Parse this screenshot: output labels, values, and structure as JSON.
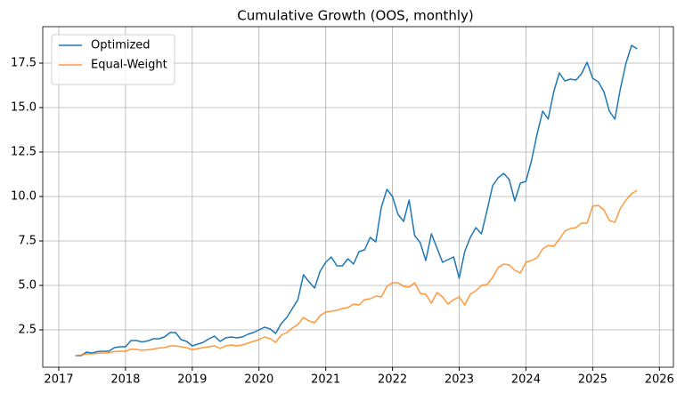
{
  "chart_data": {
    "type": "line",
    "title": "Cumulative Growth (OOS, monthly)",
    "x": [
      2017.25,
      2017.333,
      2017.417,
      2017.5,
      2017.583,
      2017.667,
      2017.75,
      2017.833,
      2017.917,
      2018.0,
      2018.083,
      2018.167,
      2018.25,
      2018.333,
      2018.417,
      2018.5,
      2018.583,
      2018.667,
      2018.75,
      2018.833,
      2018.917,
      2019.0,
      2019.083,
      2019.167,
      2019.25,
      2019.333,
      2019.417,
      2019.5,
      2019.583,
      2019.667,
      2019.75,
      2019.833,
      2019.917,
      2020.0,
      2020.083,
      2020.167,
      2020.25,
      2020.333,
      2020.417,
      2020.5,
      2020.583,
      2020.667,
      2020.75,
      2020.833,
      2020.917,
      2021.0,
      2021.083,
      2021.167,
      2021.25,
      2021.333,
      2021.417,
      2021.5,
      2021.583,
      2021.667,
      2021.75,
      2021.833,
      2021.917,
      2022.0,
      2022.083,
      2022.167,
      2022.25,
      2022.333,
      2022.417,
      2022.5,
      2022.583,
      2022.667,
      2022.75,
      2022.833,
      2022.917,
      2023.0,
      2023.083,
      2023.167,
      2023.25,
      2023.333,
      2023.417,
      2023.5,
      2023.583,
      2023.667,
      2023.75,
      2023.833,
      2023.917,
      2024.0,
      2024.083,
      2024.167,
      2024.25,
      2024.333,
      2024.417,
      2024.5,
      2024.583,
      2024.667,
      2024.75,
      2024.833,
      2024.917,
      2025.0,
      2025.083,
      2025.167,
      2025.25,
      2025.333,
      2025.417,
      2025.5,
      2025.583,
      2025.667
    ],
    "series": [
      {
        "name": "Optimized",
        "color": "#1f77b4",
        "values": [
          1.05,
          1.05,
          1.25,
          1.2,
          1.28,
          1.3,
          1.3,
          1.5,
          1.55,
          1.55,
          1.9,
          1.9,
          1.82,
          1.88,
          2.0,
          2.0,
          2.1,
          2.35,
          2.35,
          1.95,
          1.85,
          1.6,
          1.7,
          1.8,
          2.0,
          2.15,
          1.85,
          2.05,
          2.1,
          2.05,
          2.1,
          2.25,
          2.35,
          2.5,
          2.65,
          2.55,
          2.3,
          2.85,
          3.2,
          3.7,
          4.2,
          5.6,
          5.2,
          4.85,
          5.8,
          6.3,
          6.6,
          6.1,
          6.1,
          6.5,
          6.2,
          6.9,
          7.0,
          7.7,
          7.45,
          9.4,
          10.4,
          10.0,
          9.0,
          8.6,
          9.8,
          7.8,
          7.4,
          6.4,
          7.9,
          7.1,
          6.3,
          6.45,
          6.6,
          5.4,
          6.9,
          7.7,
          8.25,
          7.9,
          9.2,
          10.6,
          11.05,
          11.3,
          10.95,
          9.75,
          10.75,
          10.85,
          12.0,
          13.5,
          14.8,
          14.35,
          15.9,
          16.95,
          16.5,
          16.6,
          16.55,
          16.9,
          17.55,
          16.65,
          16.45,
          15.9,
          14.8,
          14.35,
          16.1,
          17.5,
          18.5,
          18.3
        ]
      },
      {
        "name": "Equal-Weight",
        "color": "#ff7f0e",
        "values": [
          1.05,
          1.08,
          1.15,
          1.15,
          1.18,
          1.2,
          1.22,
          1.28,
          1.3,
          1.3,
          1.42,
          1.4,
          1.35,
          1.38,
          1.42,
          1.48,
          1.5,
          1.6,
          1.6,
          1.55,
          1.5,
          1.38,
          1.45,
          1.5,
          1.55,
          1.6,
          1.45,
          1.6,
          1.65,
          1.6,
          1.65,
          1.75,
          1.85,
          1.95,
          2.1,
          2.0,
          1.8,
          2.2,
          2.35,
          2.6,
          2.8,
          3.2,
          3.0,
          2.9,
          3.3,
          3.5,
          3.55,
          3.6,
          3.7,
          3.75,
          3.95,
          3.9,
          4.2,
          4.25,
          4.4,
          4.35,
          4.95,
          5.15,
          5.15,
          4.95,
          4.9,
          5.15,
          4.55,
          4.5,
          4.0,
          4.6,
          4.35,
          3.95,
          4.2,
          4.35,
          3.9,
          4.5,
          4.7,
          5.0,
          5.05,
          5.45,
          6.0,
          6.2,
          6.15,
          5.85,
          5.7,
          6.3,
          6.4,
          6.55,
          7.05,
          7.25,
          7.2,
          7.6,
          8.05,
          8.2,
          8.25,
          8.5,
          8.5,
          9.45,
          9.5,
          9.25,
          8.65,
          8.55,
          9.35,
          9.8,
          10.15,
          10.35
        ]
      }
    ],
    "xlim": [
      2016.76,
      2026.21
    ],
    "xticks": [
      2017,
      2018,
      2019,
      2020,
      2021,
      2022,
      2023,
      2024,
      2025,
      2026
    ],
    "ylim": [
      0.4,
      19.55
    ],
    "yticks": [
      2.5,
      {
        "value": 5,
        "label": "5.0"
      },
      7.5,
      {
        "value": 10,
        "label": "10.0"
      },
      12.5,
      {
        "value": 15,
        "label": "15.0"
      },
      17.5
    ],
    "grid": true,
    "legend": "upper left"
  }
}
